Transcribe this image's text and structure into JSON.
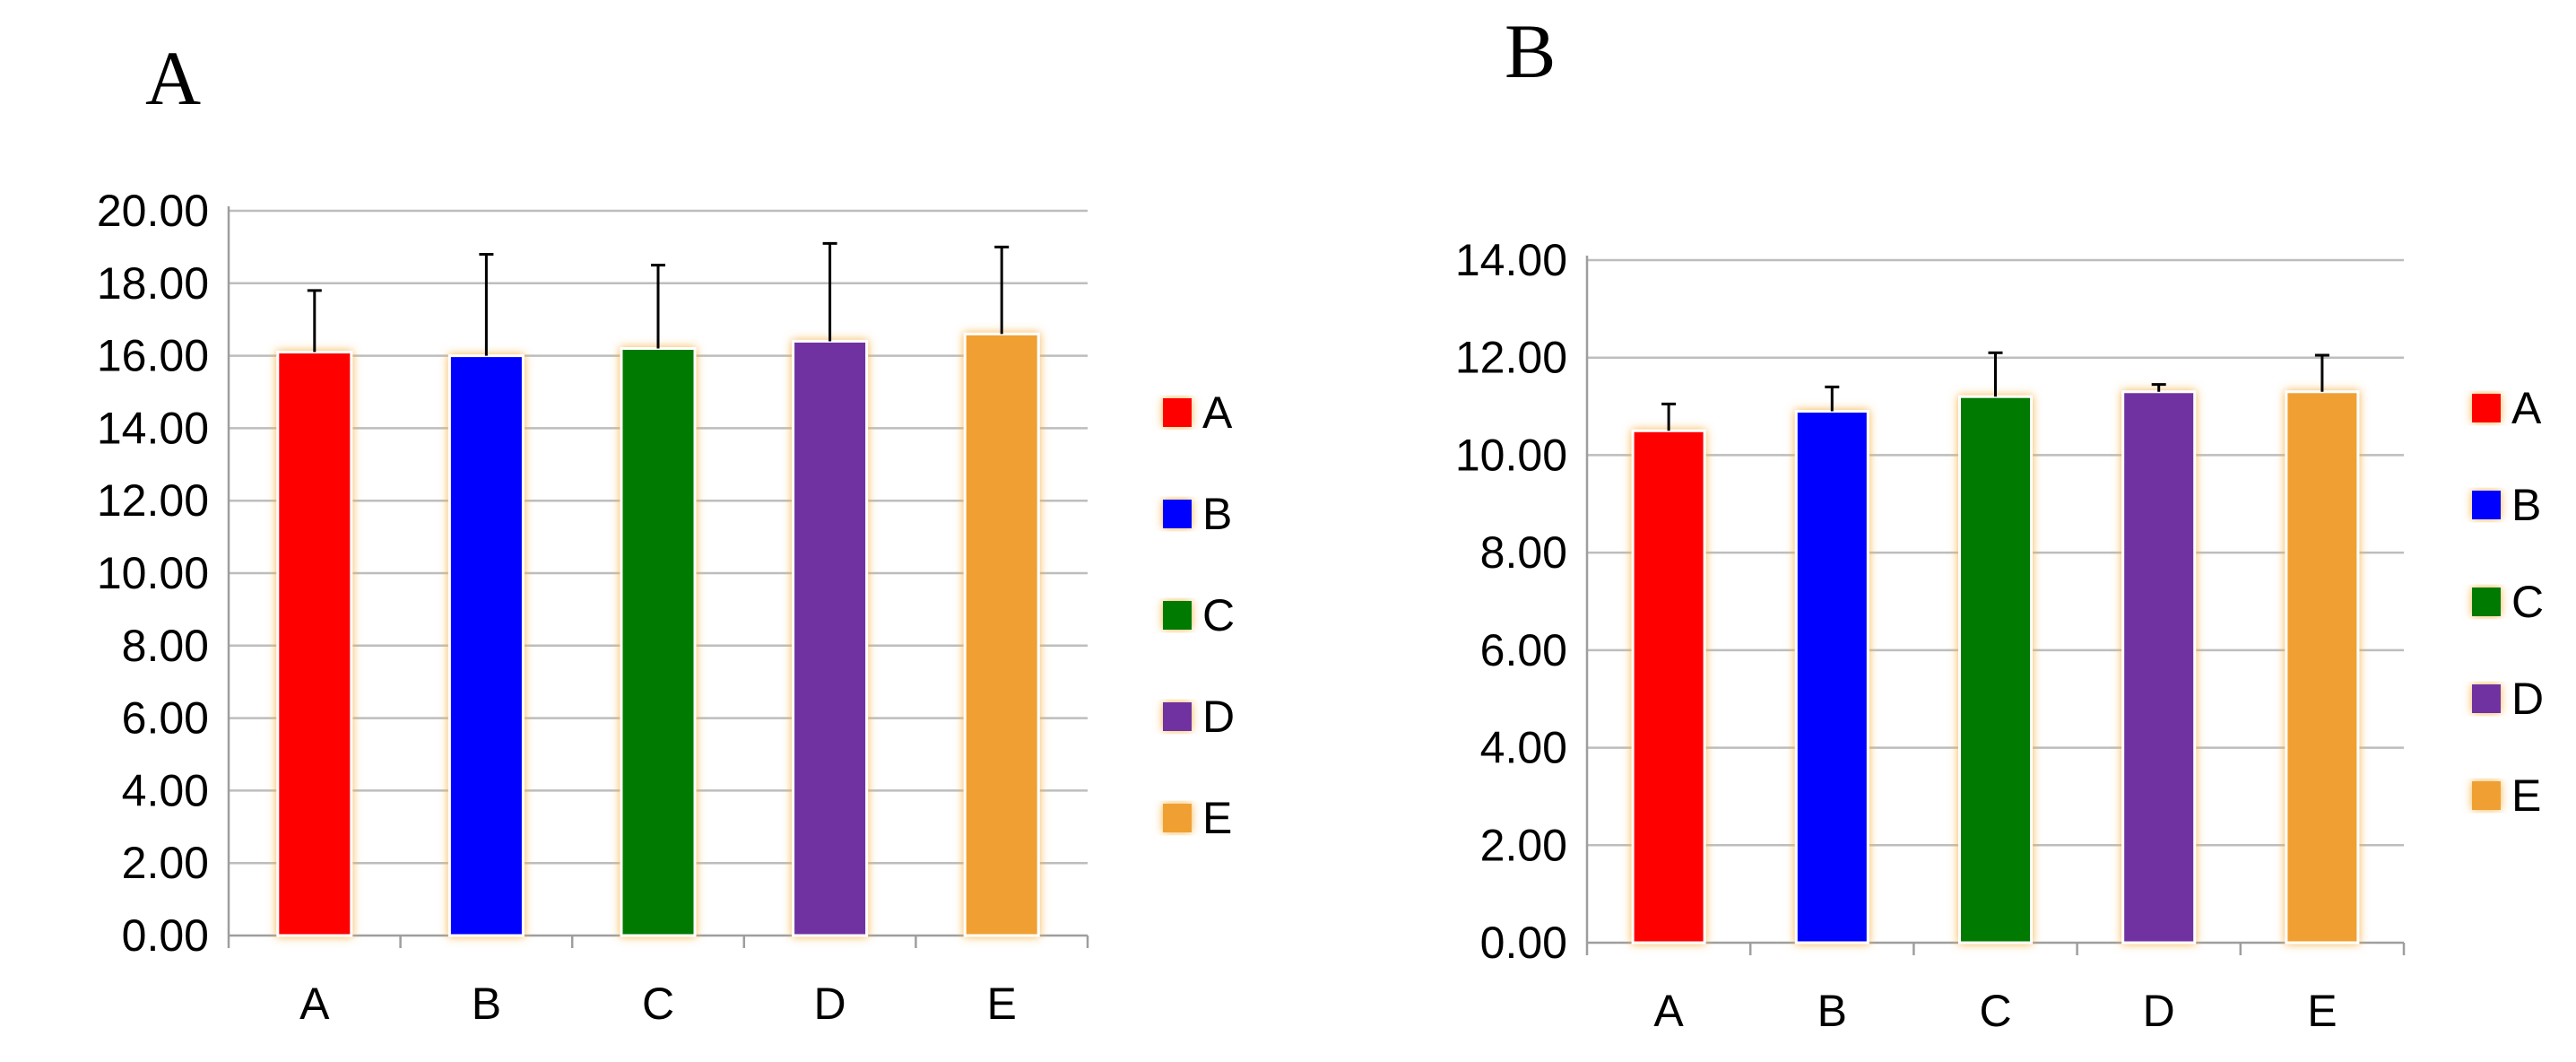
{
  "chart_data": [
    {
      "panel_label": "A",
      "type": "bar",
      "categories": [
        "A",
        "B",
        "C",
        "D",
        "E"
      ],
      "values": [
        16.1,
        16.0,
        16.2,
        16.4,
        16.6
      ],
      "error_plus": [
        1.7,
        2.8,
        2.3,
        2.7,
        2.4
      ],
      "colors": [
        "#ff0000",
        "#0000ff",
        "#007a00",
        "#7030a0",
        "#f0a030"
      ],
      "ylim": [
        0,
        20
      ],
      "yticks": [
        0,
        2,
        4,
        6,
        8,
        10,
        12,
        14,
        16,
        18,
        20
      ],
      "ytick_labels": [
        "0.00",
        "2.00",
        "4.00",
        "6.00",
        "8.00",
        "10.00",
        "12.00",
        "14.00",
        "16.00",
        "18.00",
        "20.00"
      ],
      "grid": true,
      "legend": {
        "placement": "right",
        "entries": [
          "A",
          "B",
          "C",
          "D",
          "E"
        ]
      }
    },
    {
      "panel_label": "B",
      "type": "bar",
      "categories": [
        "A",
        "B",
        "C",
        "D",
        "E"
      ],
      "values": [
        10.5,
        10.9,
        11.2,
        11.3,
        11.3
      ],
      "error_plus": [
        0.55,
        0.5,
        0.9,
        0.15,
        0.75
      ],
      "colors": [
        "#ff0000",
        "#0000ff",
        "#007a00",
        "#7030a0",
        "#f0a030"
      ],
      "ylim": [
        0,
        14
      ],
      "yticks": [
        0,
        2,
        4,
        6,
        8,
        10,
        12,
        14
      ],
      "ytick_labels": [
        "0.00",
        "2.00",
        "4.00",
        "6.00",
        "8.00",
        "10.00",
        "12.00",
        "14.00"
      ],
      "grid": true,
      "legend": {
        "placement": "right",
        "entries": [
          "A",
          "B",
          "C",
          "D",
          "E"
        ]
      }
    }
  ]
}
